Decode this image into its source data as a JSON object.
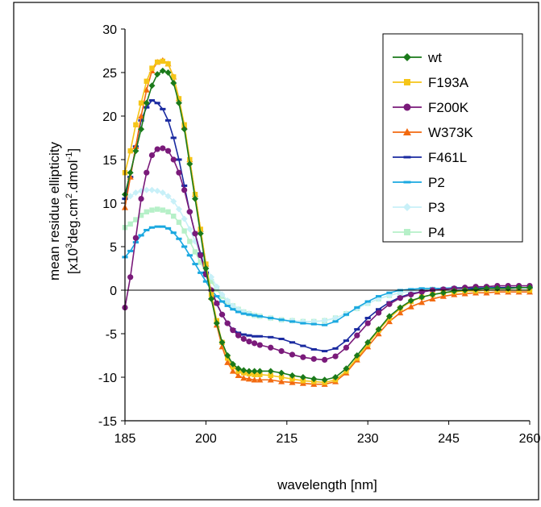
{
  "chart_data": {
    "type": "line",
    "title": "",
    "xlabel": "wavelength [nm]",
    "ylabel_line1": "mean residue ellipticity",
    "ylabel_line2": {
      "pre": "[x10",
      "sup1": "3",
      "mid": "deg.cm",
      "sup2": "2",
      "mid2": ".dmol",
      "sup3": "-1",
      "post": "]"
    },
    "xlim": [
      185,
      260
    ],
    "ylim": [
      -15,
      30
    ],
    "xticks": [
      185,
      200,
      215,
      230,
      245,
      260
    ],
    "yticks": [
      -15,
      -10,
      -5,
      0,
      5,
      10,
      15,
      20,
      25,
      30
    ],
    "grid": false,
    "legend_position": "top-right",
    "series": [
      {
        "name": "wt",
        "color": "#1a7a1a",
        "marker": "diamond",
        "x": [
          185,
          186,
          187,
          188,
          189,
          190,
          191,
          192,
          193,
          194,
          195,
          196,
          197,
          198,
          199,
          200,
          201,
          202,
          203,
          204,
          205,
          206,
          207,
          208,
          209,
          210,
          212,
          214,
          216,
          218,
          220,
          222,
          224,
          226,
          228,
          230,
          232,
          234,
          236,
          238,
          240,
          242,
          244,
          246,
          248,
          250,
          252,
          254,
          256,
          258,
          260
        ],
        "y": [
          11,
          13.5,
          16,
          18.5,
          21.5,
          23.5,
          24.8,
          25.2,
          25,
          23.8,
          21.5,
          18.5,
          14.5,
          10.5,
          6.5,
          2.5,
          -1,
          -3.8,
          -6,
          -7.5,
          -8.5,
          -9,
          -9.2,
          -9.3,
          -9.3,
          -9.3,
          -9.3,
          -9.5,
          -9.8,
          -10,
          -10.2,
          -10.3,
          -10,
          -9,
          -7.5,
          -6,
          -4.5,
          -3,
          -2,
          -1.2,
          -0.8,
          -0.5,
          -0.3,
          -0.1,
          0,
          0.1,
          0.2,
          0.2,
          0.2,
          0.3,
          0.3
        ]
      },
      {
        "name": "F193A",
        "color": "#f5c518",
        "marker": "square",
        "x": [
          185,
          186,
          187,
          188,
          189,
          190,
          191,
          192,
          193,
          194,
          195,
          196,
          197,
          198,
          199,
          200,
          201,
          202,
          203,
          204,
          205,
          206,
          207,
          208,
          209,
          210,
          212,
          214,
          216,
          218,
          220,
          222,
          224,
          226,
          228,
          230,
          232,
          234,
          236,
          238,
          240,
          242,
          244,
          246,
          248,
          250,
          252,
          254,
          256,
          258,
          260
        ],
        "y": [
          13.5,
          16,
          19,
          21.5,
          24,
          25.5,
          26.2,
          26.3,
          26,
          24.5,
          22,
          19,
          15,
          11,
          7,
          3,
          -0.5,
          -3.5,
          -6,
          -7.8,
          -8.8,
          -9.3,
          -9.5,
          -9.6,
          -9.7,
          -9.7,
          -9.8,
          -10,
          -10.2,
          -10.4,
          -10.5,
          -10.6,
          -10.3,
          -9.3,
          -7.8,
          -6.2,
          -4.6,
          -3.2,
          -2.1,
          -1.3,
          -0.8,
          -0.5,
          -0.3,
          -0.2,
          -0.1,
          -0.1,
          0,
          0,
          0,
          0,
          0
        ]
      },
      {
        "name": "F200K",
        "color": "#7a1a7a",
        "marker": "circle",
        "x": [
          185,
          186,
          187,
          188,
          189,
          190,
          191,
          192,
          193,
          194,
          195,
          196,
          197,
          198,
          199,
          200,
          201,
          202,
          203,
          204,
          205,
          206,
          207,
          208,
          209,
          210,
          212,
          214,
          216,
          218,
          220,
          222,
          224,
          226,
          228,
          230,
          232,
          234,
          236,
          238,
          240,
          242,
          244,
          246,
          248,
          250,
          252,
          254,
          256,
          258,
          260
        ],
        "y": [
          -2,
          1.5,
          6,
          10.5,
          13.5,
          15.5,
          16.2,
          16.3,
          16,
          15,
          13.5,
          11.5,
          9,
          6.5,
          4,
          1.8,
          0,
          -1.5,
          -2.8,
          -3.8,
          -4.6,
          -5.2,
          -5.6,
          -5.9,
          -6.1,
          -6.3,
          -6.6,
          -7,
          -7.4,
          -7.7,
          -7.9,
          -8,
          -7.6,
          -6.6,
          -5.2,
          -3.8,
          -2.6,
          -1.6,
          -0.9,
          -0.5,
          -0.2,
          0,
          0.1,
          0.2,
          0.3,
          0.4,
          0.4,
          0.5,
          0.5,
          0.5,
          0.5
        ]
      },
      {
        "name": "W373K",
        "color": "#f26a10",
        "marker": "triangle",
        "x": [
          185,
          186,
          187,
          188,
          189,
          190,
          191,
          192,
          193,
          194,
          195,
          196,
          197,
          198,
          199,
          200,
          201,
          202,
          203,
          204,
          205,
          206,
          207,
          208,
          209,
          210,
          212,
          214,
          216,
          218,
          220,
          222,
          224,
          226,
          228,
          230,
          232,
          234,
          236,
          238,
          240,
          242,
          244,
          246,
          248,
          250,
          252,
          254,
          256,
          258,
          260
        ],
        "y": [
          9.5,
          13,
          16.5,
          20,
          23,
          25.2,
          26.2,
          26.4,
          26,
          24.5,
          22,
          18.8,
          15,
          11,
          7,
          3,
          -0.8,
          -4,
          -6.5,
          -8.3,
          -9.3,
          -9.8,
          -10.1,
          -10.2,
          -10.3,
          -10.3,
          -10.3,
          -10.5,
          -10.6,
          -10.7,
          -10.8,
          -10.8,
          -10.5,
          -9.5,
          -8,
          -6.5,
          -5,
          -3.6,
          -2.6,
          -1.9,
          -1.4,
          -1,
          -0.7,
          -0.5,
          -0.4,
          -0.3,
          -0.3,
          -0.2,
          -0.2,
          -0.2,
          -0.2
        ]
      },
      {
        "name": "F461L",
        "color": "#1a2aa0",
        "marker": "dash",
        "x": [
          185,
          186,
          187,
          188,
          189,
          190,
          191,
          192,
          193,
          194,
          195,
          196,
          197,
          198,
          199,
          200,
          201,
          202,
          203,
          204,
          205,
          206,
          207,
          208,
          209,
          210,
          212,
          214,
          216,
          218,
          220,
          222,
          224,
          226,
          228,
          230,
          232,
          234,
          236,
          238,
          240,
          242,
          244,
          246,
          248,
          250,
          252,
          254,
          256,
          258,
          260
        ],
        "y": [
          10.5,
          13,
          16.5,
          19.5,
          21,
          21.8,
          21.5,
          20.8,
          19.5,
          17.5,
          15,
          12,
          9,
          6.5,
          4.2,
          2,
          0,
          -1.6,
          -2.8,
          -3.8,
          -4.5,
          -4.9,
          -5.1,
          -5.2,
          -5.3,
          -5.3,
          -5.4,
          -5.6,
          -6,
          -6.4,
          -6.8,
          -7,
          -6.7,
          -5.8,
          -4.5,
          -3.2,
          -2.2,
          -1.4,
          -0.8,
          -0.4,
          -0.2,
          0,
          0.1,
          0.2,
          0.2,
          0.2,
          0.2,
          0.3,
          0.3,
          0.3,
          0.3
        ]
      },
      {
        "name": "P2",
        "color": "#1aa8e0",
        "marker": "dash",
        "x": [
          185,
          186,
          187,
          188,
          189,
          190,
          191,
          192,
          193,
          194,
          195,
          196,
          197,
          198,
          199,
          200,
          201,
          202,
          203,
          204,
          205,
          206,
          207,
          208,
          209,
          210,
          212,
          214,
          216,
          218,
          220,
          222,
          224,
          226,
          228,
          230,
          232,
          234,
          236,
          238,
          240,
          242,
          244,
          246,
          248,
          250,
          252,
          254,
          256,
          258,
          260
        ],
        "y": [
          3.8,
          4.5,
          5.5,
          6.3,
          6.9,
          7.2,
          7.3,
          7.3,
          7.1,
          6.6,
          5.9,
          5,
          4,
          3,
          2,
          1,
          0,
          -0.7,
          -1.3,
          -1.8,
          -2.2,
          -2.5,
          -2.7,
          -2.8,
          -2.9,
          -3,
          -3.2,
          -3.4,
          -3.6,
          -3.8,
          -3.9,
          -4,
          -3.6,
          -2.8,
          -2,
          -1.3,
          -0.7,
          -0.3,
          0,
          0.1,
          0.2,
          0.2,
          0.2,
          0.3,
          0.3,
          0.3,
          0.3,
          0.3,
          0.3,
          0.3,
          0.3
        ]
      },
      {
        "name": "P3",
        "color": "#c8f0f8",
        "marker": "diamond",
        "x": [
          185,
          186,
          187,
          188,
          189,
          190,
          191,
          192,
          193,
          194,
          195,
          196,
          197,
          198,
          199,
          200,
          201,
          202,
          203,
          204,
          205,
          206,
          207,
          208,
          209,
          210,
          212,
          214,
          216,
          218,
          220,
          222,
          224,
          226,
          228,
          230,
          232,
          234,
          236,
          238,
          240,
          242,
          244,
          246,
          248,
          250,
          252,
          254,
          256,
          258,
          260
        ],
        "y": [
          10.5,
          10.8,
          11.2,
          11.4,
          11.5,
          11.5,
          11.4,
          11.2,
          10.8,
          10.2,
          9.3,
          8.2,
          7,
          5.6,
          4.2,
          2.8,
          1.5,
          0.4,
          -0.5,
          -1.2,
          -1.8,
          -2.2,
          -2.5,
          -2.7,
          -2.9,
          -3,
          -3.2,
          -3.4,
          -3.5,
          -3.6,
          -3.6,
          -3.5,
          -3.2,
          -2.7,
          -2.1,
          -1.5,
          -1,
          -0.6,
          -0.3,
          -0.1,
          0,
          0.1,
          0.1,
          0.2,
          0.2,
          0.2,
          0.2,
          0.2,
          0.2,
          0.2,
          0.2
        ]
      },
      {
        "name": "P4",
        "color": "#b6f0c8",
        "marker": "square",
        "x": [
          185,
          186,
          187,
          188,
          189,
          190,
          191,
          192,
          193,
          194,
          195,
          196,
          197,
          198,
          199,
          200,
          201,
          202,
          203,
          204,
          205,
          206,
          207,
          208,
          209,
          210,
          212,
          214,
          216,
          218,
          220,
          222,
          224,
          226,
          228,
          230,
          232,
          234,
          236,
          238,
          240,
          242,
          244,
          246,
          248,
          250,
          252,
          254,
          256,
          258,
          260
        ],
        "y": [
          7.2,
          7.6,
          8.1,
          8.6,
          9,
          9.2,
          9.3,
          9.2,
          9,
          8.5,
          7.8,
          6.8,
          5.6,
          4.4,
          3.2,
          2,
          1,
          0.1,
          -0.7,
          -1.3,
          -1.8,
          -2.2,
          -2.5,
          -2.7,
          -2.9,
          -3,
          -3.2,
          -3.4,
          -3.5,
          -3.6,
          -3.6,
          -3.5,
          -3.2,
          -2.7,
          -2.1,
          -1.5,
          -1,
          -0.6,
          -0.3,
          -0.1,
          0,
          0.1,
          0.1,
          0.2,
          0.2,
          0.2,
          0.2,
          0.2,
          0.2,
          0.2,
          0.2
        ]
      }
    ]
  }
}
